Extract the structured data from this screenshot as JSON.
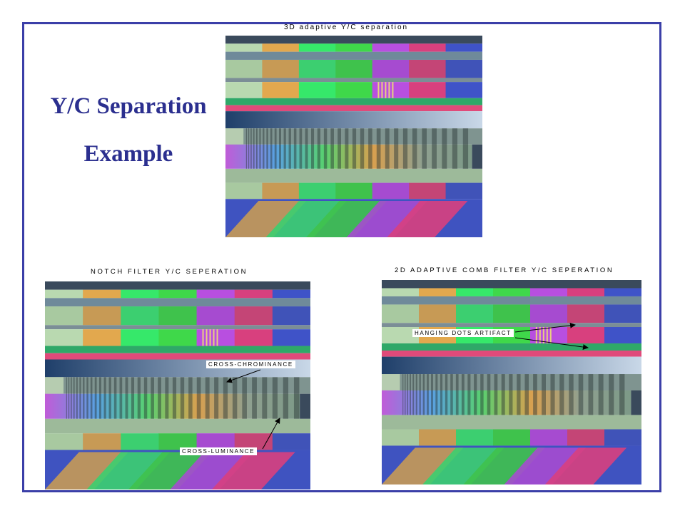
{
  "slide": {
    "title_line1": "Y/C Separation",
    "title_line2": "Example",
    "accent_color": "#3b3fa8",
    "title_color": "#2b2f8f"
  },
  "panels": {
    "top": {
      "caption": "3D adaptive Y/C separation"
    },
    "bottom_left": {
      "caption": "NOTCH FILTER Y/C SEPERATION",
      "annotations": [
        "CROSS-CHROMINANCE",
        "CROSS-LUMINANCE"
      ]
    },
    "bottom_right": {
      "caption": "2D ADAPTIVE COMB FILTER Y/C SEPERATION",
      "annotations": [
        "HANGING DOTS ARTIFACT"
      ]
    }
  },
  "palette": {
    "bars": [
      "#b9d9b0",
      "#e2a84e",
      "#36e86a",
      "#3fd84a",
      "#b84fe0",
      "#d8407e",
      "#3f53c8"
    ],
    "muted_bars": [
      "#a8c9a0",
      "#c79a55",
      "#3ccf70",
      "#3fc24c",
      "#a64bd0",
      "#c44576",
      "#4053b8"
    ]
  }
}
